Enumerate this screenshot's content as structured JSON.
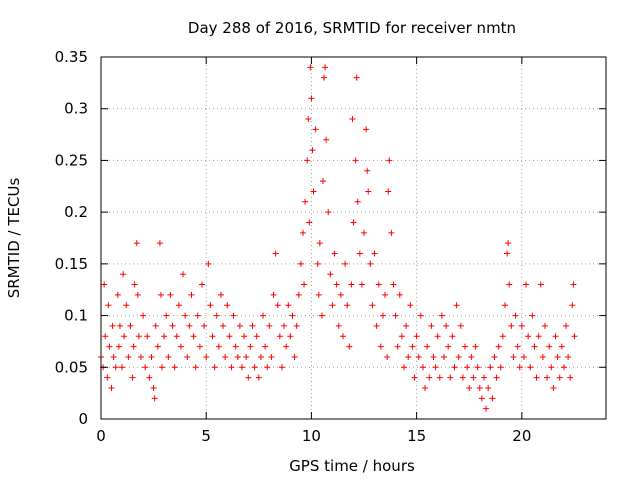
{
  "chart_data": {
    "type": "scatter",
    "title": "Day 288 of 2016, SRMTID for receiver nmtn",
    "xlabel": "GPS time / hours",
    "ylabel": "SRMTID / TECUs",
    "xlim": [
      0,
      24
    ],
    "ylim": [
      0,
      0.35
    ],
    "xticks": [
      0,
      5,
      10,
      15,
      20
    ],
    "xtick_labels": [
      "0",
      "5",
      "10",
      "15",
      "20"
    ],
    "yticks": [
      0,
      0.05,
      0.1,
      0.15,
      0.2,
      0.25,
      0.3,
      0.35
    ],
    "ytick_labels": [
      "0",
      "0.05",
      "0.1",
      "0.15",
      "0.2",
      "0.25",
      "0.3",
      "0.35"
    ],
    "grid": true,
    "marker": "plus",
    "color": "#ff0000",
    "series": [
      {
        "name": "SRMTID",
        "note": "dense point cloud; approximate per-interval values read from the figure",
        "points": [
          [
            0.0,
            0.06
          ],
          [
            0.1,
            0.05
          ],
          [
            0.15,
            0.13
          ],
          [
            0.2,
            0.08
          ],
          [
            0.3,
            0.04
          ],
          [
            0.35,
            0.11
          ],
          [
            0.4,
            0.07
          ],
          [
            0.5,
            0.03
          ],
          [
            0.55,
            0.09
          ],
          [
            0.6,
            0.06
          ],
          [
            0.7,
            0.05
          ],
          [
            0.8,
            0.12
          ],
          [
            0.85,
            0.07
          ],
          [
            0.9,
            0.09
          ],
          [
            1.0,
            0.05
          ],
          [
            1.05,
            0.14
          ],
          [
            1.1,
            0.08
          ],
          [
            1.2,
            0.11
          ],
          [
            1.3,
            0.06
          ],
          [
            1.4,
            0.09
          ],
          [
            1.5,
            0.04
          ],
          [
            1.55,
            0.07
          ],
          [
            1.6,
            0.13
          ],
          [
            1.7,
            0.17
          ],
          [
            1.75,
            0.12
          ],
          [
            1.8,
            0.08
          ],
          [
            1.9,
            0.06
          ],
          [
            2.0,
            0.1
          ],
          [
            2.1,
            0.05
          ],
          [
            2.2,
            0.08
          ],
          [
            2.3,
            0.04
          ],
          [
            2.4,
            0.06
          ],
          [
            2.5,
            0.03
          ],
          [
            2.55,
            0.02
          ],
          [
            2.6,
            0.09
          ],
          [
            2.7,
            0.07
          ],
          [
            2.8,
            0.17
          ],
          [
            2.85,
            0.12
          ],
          [
            2.9,
            0.05
          ],
          [
            3.0,
            0.08
          ],
          [
            3.1,
            0.1
          ],
          [
            3.2,
            0.06
          ],
          [
            3.3,
            0.12
          ],
          [
            3.4,
            0.09
          ],
          [
            3.5,
            0.05
          ],
          [
            3.6,
            0.08
          ],
          [
            3.7,
            0.11
          ],
          [
            3.8,
            0.07
          ],
          [
            3.9,
            0.14
          ],
          [
            4.0,
            0.1
          ],
          [
            4.1,
            0.06
          ],
          [
            4.2,
            0.09
          ],
          [
            4.3,
            0.12
          ],
          [
            4.4,
            0.08
          ],
          [
            4.5,
            0.05
          ],
          [
            4.6,
            0.1
          ],
          [
            4.7,
            0.07
          ],
          [
            4.8,
            0.13
          ],
          [
            4.9,
            0.09
          ],
          [
            5.0,
            0.06
          ],
          [
            5.1,
            0.15
          ],
          [
            5.2,
            0.11
          ],
          [
            5.3,
            0.08
          ],
          [
            5.4,
            0.05
          ],
          [
            5.5,
            0.1
          ],
          [
            5.6,
            0.07
          ],
          [
            5.7,
            0.12
          ],
          [
            5.8,
            0.09
          ],
          [
            5.9,
            0.06
          ],
          [
            6.0,
            0.11
          ],
          [
            6.1,
            0.08
          ],
          [
            6.2,
            0.05
          ],
          [
            6.3,
            0.1
          ],
          [
            6.4,
            0.07
          ],
          [
            6.5,
            0.06
          ],
          [
            6.6,
            0.09
          ],
          [
            6.7,
            0.05
          ],
          [
            6.8,
            0.08
          ],
          [
            6.9,
            0.06
          ],
          [
            7.0,
            0.04
          ],
          [
            7.1,
            0.07
          ],
          [
            7.2,
            0.09
          ],
          [
            7.3,
            0.05
          ],
          [
            7.4,
            0.08
          ],
          [
            7.5,
            0.04
          ],
          [
            7.6,
            0.06
          ],
          [
            7.7,
            0.1
          ],
          [
            7.8,
            0.07
          ],
          [
            7.9,
            0.05
          ],
          [
            8.0,
            0.09
          ],
          [
            8.1,
            0.06
          ],
          [
            8.2,
            0.12
          ],
          [
            8.3,
            0.16
          ],
          [
            8.4,
            0.11
          ],
          [
            8.5,
            0.08
          ],
          [
            8.6,
            0.05
          ],
          [
            8.7,
            0.09
          ],
          [
            8.8,
            0.07
          ],
          [
            8.9,
            0.11
          ],
          [
            9.0,
            0.08
          ],
          [
            9.1,
            0.1
          ],
          [
            9.2,
            0.06
          ],
          [
            9.3,
            0.09
          ],
          [
            9.4,
            0.12
          ],
          [
            9.5,
            0.15
          ],
          [
            9.6,
            0.18
          ],
          [
            9.65,
            0.13
          ],
          [
            9.7,
            0.21
          ],
          [
            9.8,
            0.25
          ],
          [
            9.85,
            0.29
          ],
          [
            9.9,
            0.19
          ],
          [
            9.95,
            0.34
          ],
          [
            10.0,
            0.31
          ],
          [
            10.05,
            0.26
          ],
          [
            10.1,
            0.22
          ],
          [
            10.2,
            0.28
          ],
          [
            10.3,
            0.15
          ],
          [
            10.35,
            0.12
          ],
          [
            10.4,
            0.17
          ],
          [
            10.5,
            0.1
          ],
          [
            10.55,
            0.23
          ],
          [
            10.6,
            0.33
          ],
          [
            10.65,
            0.34
          ],
          [
            10.7,
            0.27
          ],
          [
            10.8,
            0.2
          ],
          [
            10.9,
            0.14
          ],
          [
            11.0,
            0.11
          ],
          [
            11.1,
            0.16
          ],
          [
            11.2,
            0.13
          ],
          [
            11.3,
            0.09
          ],
          [
            11.4,
            0.12
          ],
          [
            11.5,
            0.08
          ],
          [
            11.6,
            0.15
          ],
          [
            11.7,
            0.11
          ],
          [
            11.8,
            0.07
          ],
          [
            11.9,
            0.13
          ],
          [
            11.95,
            0.29
          ],
          [
            12.0,
            0.19
          ],
          [
            12.1,
            0.25
          ],
          [
            12.15,
            0.33
          ],
          [
            12.2,
            0.21
          ],
          [
            12.3,
            0.16
          ],
          [
            12.4,
            0.13
          ],
          [
            12.5,
            0.18
          ],
          [
            12.6,
            0.28
          ],
          [
            12.65,
            0.24
          ],
          [
            12.7,
            0.22
          ],
          [
            12.8,
            0.15
          ],
          [
            12.9,
            0.11
          ],
          [
            13.0,
            0.16
          ],
          [
            13.1,
            0.09
          ],
          [
            13.2,
            0.13
          ],
          [
            13.3,
            0.07
          ],
          [
            13.4,
            0.1
          ],
          [
            13.5,
            0.12
          ],
          [
            13.6,
            0.06
          ],
          [
            13.65,
            0.22
          ],
          [
            13.7,
            0.25
          ],
          [
            13.8,
            0.18
          ],
          [
            13.9,
            0.13
          ],
          [
            14.0,
            0.1
          ],
          [
            14.1,
            0.07
          ],
          [
            14.2,
            0.12
          ],
          [
            14.3,
            0.08
          ],
          [
            14.4,
            0.05
          ],
          [
            14.5,
            0.09
          ],
          [
            14.6,
            0.06
          ],
          [
            14.7,
            0.11
          ],
          [
            14.8,
            0.07
          ],
          [
            14.9,
            0.04
          ],
          [
            15.0,
            0.08
          ],
          [
            15.1,
            0.06
          ],
          [
            15.2,
            0.1
          ],
          [
            15.3,
            0.05
          ],
          [
            15.4,
            0.03
          ],
          [
            15.5,
            0.07
          ],
          [
            15.6,
            0.04
          ],
          [
            15.7,
            0.09
          ],
          [
            15.8,
            0.06
          ],
          [
            15.9,
            0.05
          ],
          [
            16.0,
            0.08
          ],
          [
            16.1,
            0.04
          ],
          [
            16.2,
            0.1
          ],
          [
            16.3,
            0.06
          ],
          [
            16.4,
            0.09
          ],
          [
            16.5,
            0.07
          ],
          [
            16.6,
            0.04
          ],
          [
            16.7,
            0.08
          ],
          [
            16.8,
            0.05
          ],
          [
            16.9,
            0.11
          ],
          [
            17.0,
            0.06
          ],
          [
            17.1,
            0.09
          ],
          [
            17.2,
            0.04
          ],
          [
            17.3,
            0.07
          ],
          [
            17.4,
            0.05
          ],
          [
            17.5,
            0.03
          ],
          [
            17.6,
            0.06
          ],
          [
            17.7,
            0.04
          ],
          [
            17.8,
            0.07
          ],
          [
            17.9,
            0.05
          ],
          [
            18.0,
            0.03
          ],
          [
            18.1,
            0.02
          ],
          [
            18.2,
            0.04
          ],
          [
            18.3,
            0.01
          ],
          [
            18.4,
            0.03
          ],
          [
            18.5,
            0.05
          ],
          [
            18.6,
            0.02
          ],
          [
            18.7,
            0.06
          ],
          [
            18.8,
            0.04
          ],
          [
            18.9,
            0.07
          ],
          [
            19.0,
            0.05
          ],
          [
            19.1,
            0.08
          ],
          [
            19.2,
            0.11
          ],
          [
            19.3,
            0.16
          ],
          [
            19.35,
            0.17
          ],
          [
            19.4,
            0.13
          ],
          [
            19.5,
            0.09
          ],
          [
            19.6,
            0.06
          ],
          [
            19.7,
            0.1
          ],
          [
            19.8,
            0.07
          ],
          [
            19.9,
            0.05
          ],
          [
            20.0,
            0.09
          ],
          [
            20.1,
            0.06
          ],
          [
            20.2,
            0.13
          ],
          [
            20.3,
            0.08
          ],
          [
            20.4,
            0.05
          ],
          [
            20.5,
            0.1
          ],
          [
            20.6,
            0.07
          ],
          [
            20.7,
            0.04
          ],
          [
            20.8,
            0.08
          ],
          [
            20.9,
            0.13
          ],
          [
            21.0,
            0.06
          ],
          [
            21.1,
            0.09
          ],
          [
            21.2,
            0.04
          ],
          [
            21.3,
            0.07
          ],
          [
            21.4,
            0.05
          ],
          [
            21.5,
            0.03
          ],
          [
            21.6,
            0.08
          ],
          [
            21.7,
            0.06
          ],
          [
            21.8,
            0.04
          ],
          [
            21.9,
            0.07
          ],
          [
            22.0,
            0.05
          ],
          [
            22.1,
            0.09
          ],
          [
            22.2,
            0.06
          ],
          [
            22.3,
            0.04
          ],
          [
            22.4,
            0.11
          ],
          [
            22.45,
            0.13
          ],
          [
            22.5,
            0.08
          ]
        ]
      }
    ]
  }
}
